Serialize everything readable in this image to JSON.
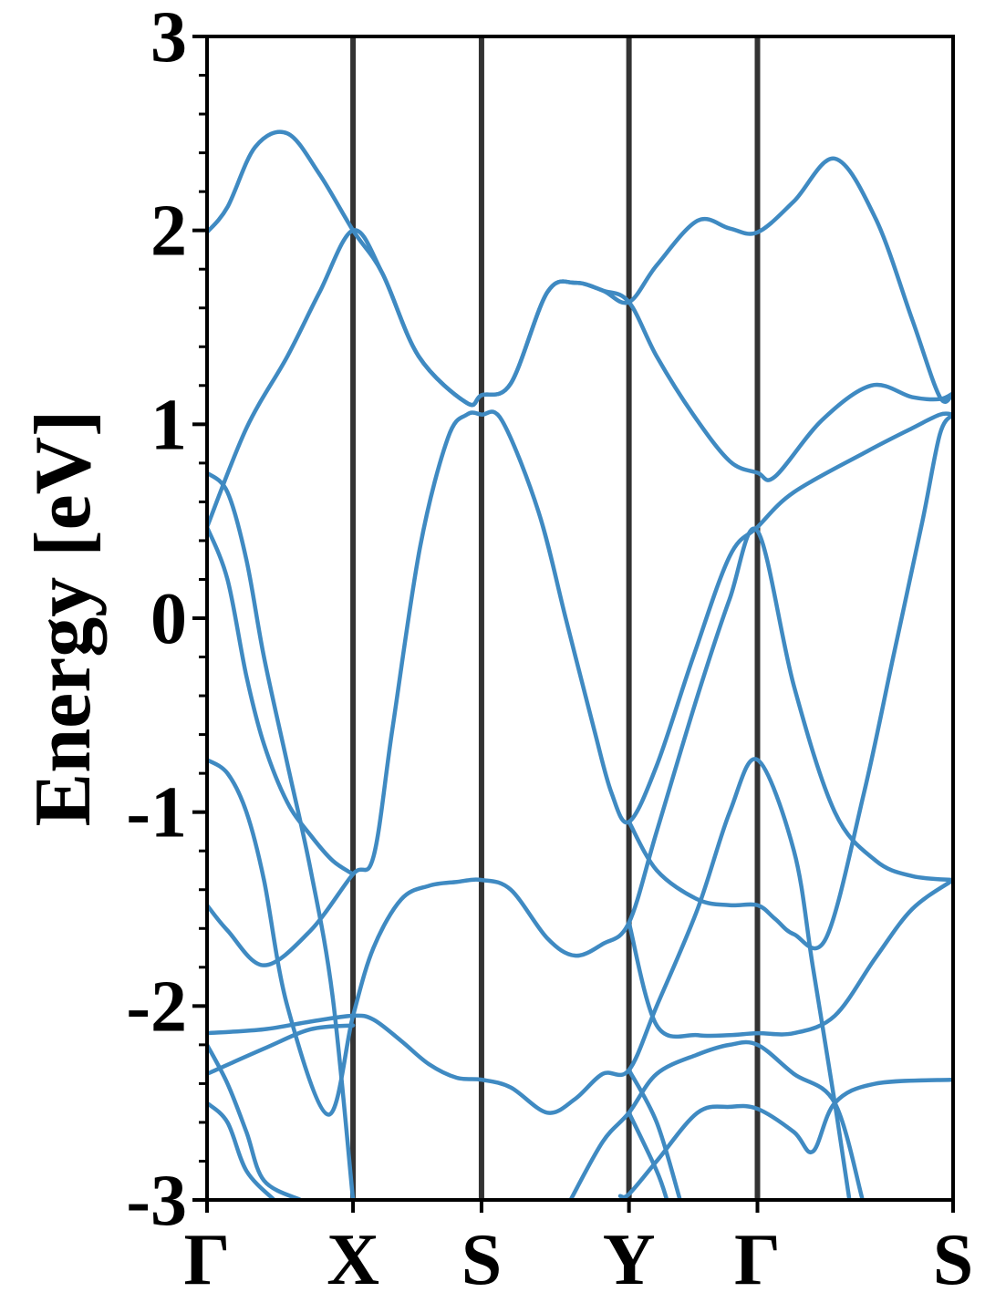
{
  "chart_data": {
    "type": "line",
    "ylabel": "Energy [eV]",
    "color": "#3f8ac2",
    "kpath_lines": true,
    "xlim": [
      0,
      5.11
    ],
    "ylim": [
      -3,
      3
    ],
    "xticks": [
      {
        "value": 0,
        "label": "Γ"
      },
      {
        "value": 1.0,
        "label": "X"
      },
      {
        "value": 1.88,
        "label": "S"
      },
      {
        "value": 2.89,
        "label": "Y"
      },
      {
        "value": 3.77,
        "label": "Γ"
      },
      {
        "value": 5.11,
        "label": "S"
      }
    ],
    "yticks": [
      3,
      2,
      1,
      0,
      -1,
      -2,
      -3
    ],
    "yminor_ticks": [
      -2.8,
      -2.6,
      -2.4,
      -2.2,
      -1.8,
      -1.6,
      -1.4,
      -1.2,
      -0.8,
      -0.6,
      -0.4,
      -0.2,
      0.2,
      0.4,
      0.6,
      0.8,
      1.2,
      1.4,
      1.6,
      1.8,
      2.2,
      2.4,
      2.6,
      2.8
    ],
    "series": [
      {
        "x": [
          0,
          0.14,
          0.33,
          0.55,
          0.77,
          1.0,
          1.2,
          1.45,
          1.78,
          1.88,
          2.08,
          2.33,
          2.52,
          2.71,
          2.89,
          3.08,
          3.36,
          3.58,
          3.77,
          4.02,
          4.3,
          4.58,
          4.83,
          5.02,
          5.11
        ],
        "values": [
          1.99,
          2.12,
          2.43,
          2.5,
          2.29,
          2.0,
          1.78,
          1.35,
          1.11,
          1.15,
          1.21,
          1.68,
          1.73,
          1.69,
          1.63,
          1.82,
          2.05,
          2.01,
          1.99,
          2.15,
          2.37,
          2.06,
          1.54,
          1.14,
          1.16
        ]
      },
      {
        "x": [
          0,
          0.27,
          0.55,
          0.77,
          1.0,
          1.2,
          1.45,
          1.78,
          1.88,
          2.08,
          2.33,
          2.52,
          2.71,
          2.89,
          3.08,
          3.33,
          3.58,
          3.77,
          3.89,
          4.21,
          4.55,
          4.83,
          5.02,
          5.11
        ],
        "values": [
          0.47,
          0.98,
          1.35,
          1.68,
          2.0,
          1.78,
          1.35,
          1.11,
          1.15,
          1.21,
          1.68,
          1.73,
          1.69,
          1.63,
          1.35,
          1.05,
          0.81,
          0.75,
          0.73,
          1.02,
          1.2,
          1.14,
          1.13,
          1.16
        ]
      },
      {
        "x": [
          0,
          0.14,
          0.39,
          0.71,
          1.0,
          1.14,
          1.27,
          1.46,
          1.65,
          1.78,
          1.88,
          2.02,
          2.27,
          2.46,
          2.65,
          2.77,
          2.89,
          3.08,
          3.33,
          3.58,
          3.77,
          4.02,
          4.52,
          4.83,
          5.02,
          5.11
        ],
        "values": [
          -1.48,
          -1.61,
          -1.79,
          -1.61,
          -1.32,
          -1.23,
          -0.57,
          0.37,
          0.93,
          1.05,
          1.05,
          1.02,
          0.55,
          -0.01,
          -0.57,
          -0.9,
          -1.05,
          -0.76,
          -0.2,
          0.32,
          0.47,
          0.65,
          0.86,
          0.98,
          1.05,
          1.05
        ]
      },
      {
        "x": [
          0,
          0.14,
          0.27,
          0.39,
          0.55,
          0.71,
          0.86,
          1.0
        ],
        "values": [
          0.75,
          0.65,
          0.3,
          -0.2,
          -0.75,
          -1.3,
          -1.95,
          -3.0
        ]
      },
      {
        "x": [
          0,
          0.14,
          0.27,
          0.39,
          0.55,
          0.71,
          0.86,
          1.0
        ],
        "values": [
          0.47,
          0.2,
          -0.3,
          -0.65,
          -0.95,
          -1.12,
          -1.25,
          -1.32
        ]
      },
      {
        "x": [
          0,
          0.14,
          0.27,
          0.39,
          0.55,
          0.83,
          1.0,
          1.14,
          1.33,
          1.52,
          1.71,
          1.88,
          2.08,
          2.33,
          2.52,
          2.71,
          2.89,
          3.08,
          3.36,
          3.58,
          3.77,
          4.02,
          4.3,
          4.58,
          4.83,
          5.11
        ],
        "values": [
          -0.73,
          -0.8,
          -1.0,
          -1.35,
          -2.0,
          -2.56,
          -2.05,
          -1.7,
          -1.45,
          -1.38,
          -1.36,
          -1.35,
          -1.4,
          -1.65,
          -1.74,
          -1.68,
          -1.57,
          -1.1,
          -0.4,
          0.1,
          0.45,
          -0.35,
          -1.0,
          -1.25,
          -1.33,
          -1.35
        ]
      },
      {
        "x": [
          0,
          0.39,
          0.71,
          1.0,
          1.14,
          1.33,
          1.52,
          1.71,
          1.88,
          2.08,
          2.33,
          2.52,
          2.71,
          2.89,
          3.08,
          3.36,
          3.58,
          3.77,
          4.02,
          4.15,
          4.3,
          4.4
        ],
        "values": [
          -2.14,
          -2.12,
          -2.08,
          -2.05,
          -2.07,
          -2.18,
          -2.3,
          -2.37,
          -2.38,
          -2.42,
          -2.55,
          -2.48,
          -2.35,
          -2.33,
          -2.0,
          -1.5,
          -1.0,
          -0.73,
          -1.2,
          -1.8,
          -2.5,
          -3.0
        ]
      },
      {
        "x": [
          0,
          0.39,
          0.71,
          1.0
        ],
        "values": [
          -2.35,
          -2.22,
          -2.12,
          -2.1
        ]
      },
      {
        "x": [
          0,
          0.14,
          0.27,
          0.39,
          0.64
        ],
        "values": [
          -2.2,
          -2.4,
          -2.65,
          -2.9,
          -3.0
        ]
      },
      {
        "x": [
          0,
          0.14,
          0.27,
          0.46
        ],
        "values": [
          -2.5,
          -2.6,
          -2.85,
          -3.0
        ]
      },
      {
        "x": [
          2.89,
          3.08,
          3.36,
          3.58,
          3.77,
          3.89,
          4.02,
          4.24,
          4.5,
          4.7,
          4.9,
          5.02,
          5.11
        ],
        "values": [
          -1.05,
          -1.3,
          -1.45,
          -1.48,
          -1.48,
          -1.55,
          -1.63,
          -1.65,
          -0.9,
          -0.2,
          0.5,
          0.95,
          1.05
        ]
      },
      {
        "x": [
          2.89,
          3.08,
          3.36,
          3.58,
          3.77,
          4.02,
          4.3,
          4.58,
          4.83,
          5.11
        ],
        "values": [
          -1.57,
          -2.1,
          -2.15,
          -2.15,
          -2.14,
          -2.14,
          -2.05,
          -1.75,
          -1.5,
          -1.35
        ]
      },
      {
        "x": [
          2.89,
          3.08,
          3.24
        ],
        "values": [
          -2.33,
          -2.6,
          -3.0
        ]
      },
      {
        "x": [
          2.49,
          2.71,
          2.89,
          3.08,
          3.36,
          3.58,
          3.77,
          4.02,
          4.3,
          4.49
        ],
        "values": [
          -3.0,
          -2.7,
          -2.55,
          -2.35,
          -2.25,
          -2.2,
          -2.2,
          -2.35,
          -2.5,
          -3.0
        ]
      },
      {
        "x": [
          2.83,
          2.89,
          3.08,
          3.36,
          3.58,
          3.77,
          4.02,
          4.15,
          4.3,
          4.58,
          5.11
        ],
        "values": [
          -2.98,
          -2.97,
          -2.8,
          -2.55,
          -2.52,
          -2.53,
          -2.65,
          -2.75,
          -2.5,
          -2.4,
          -2.38
        ]
      },
      {
        "x": [
          2.89,
          3.08,
          3.15
        ],
        "values": [
          -2.55,
          -2.85,
          -3.0
        ]
      }
    ]
  }
}
